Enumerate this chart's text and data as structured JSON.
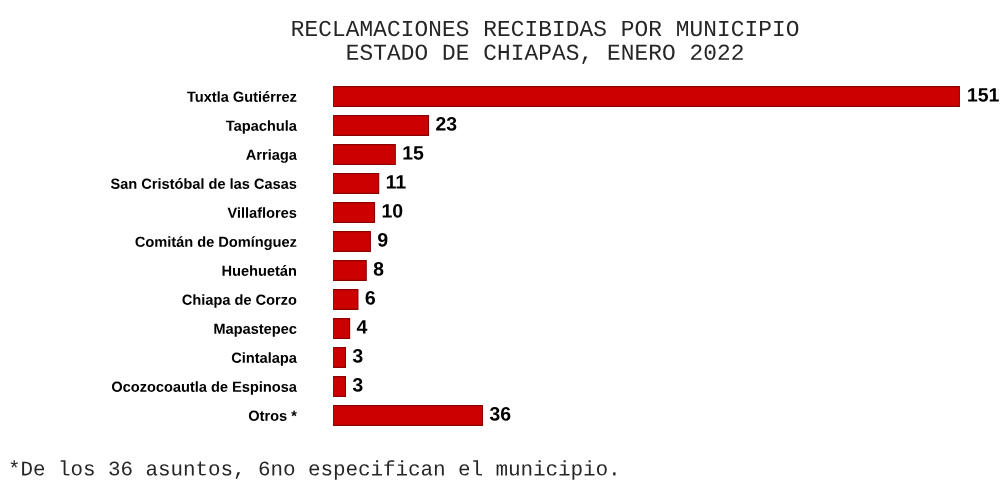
{
  "chart_data": {
    "type": "bar",
    "orientation": "horizontal",
    "title": "RECLAMACIONES RECIBIDAS POR MUNICIPIO\nESTADO DE CHIAPAS, ENERO 2022",
    "categories": [
      "Tuxtla Gutiérrez",
      "Tapachula",
      "Arriaga",
      "San Cristóbal de las Casas",
      "Villaflores",
      "Comitán de Domínguez",
      "Huehuetán",
      "Chiapa de Corzo",
      "Mapastepec",
      "Cintalapa",
      "Ocozocoautla de Espinosa",
      "Otros *"
    ],
    "values": [
      151,
      23,
      15,
      11,
      10,
      9,
      8,
      6,
      4,
      3,
      3,
      36
    ],
    "color": "#cc0000",
    "data_labels": true,
    "tick_labels": "y",
    "annotations": [
      "*De los 36 asuntos, 6no especifican el municipio."
    ]
  }
}
